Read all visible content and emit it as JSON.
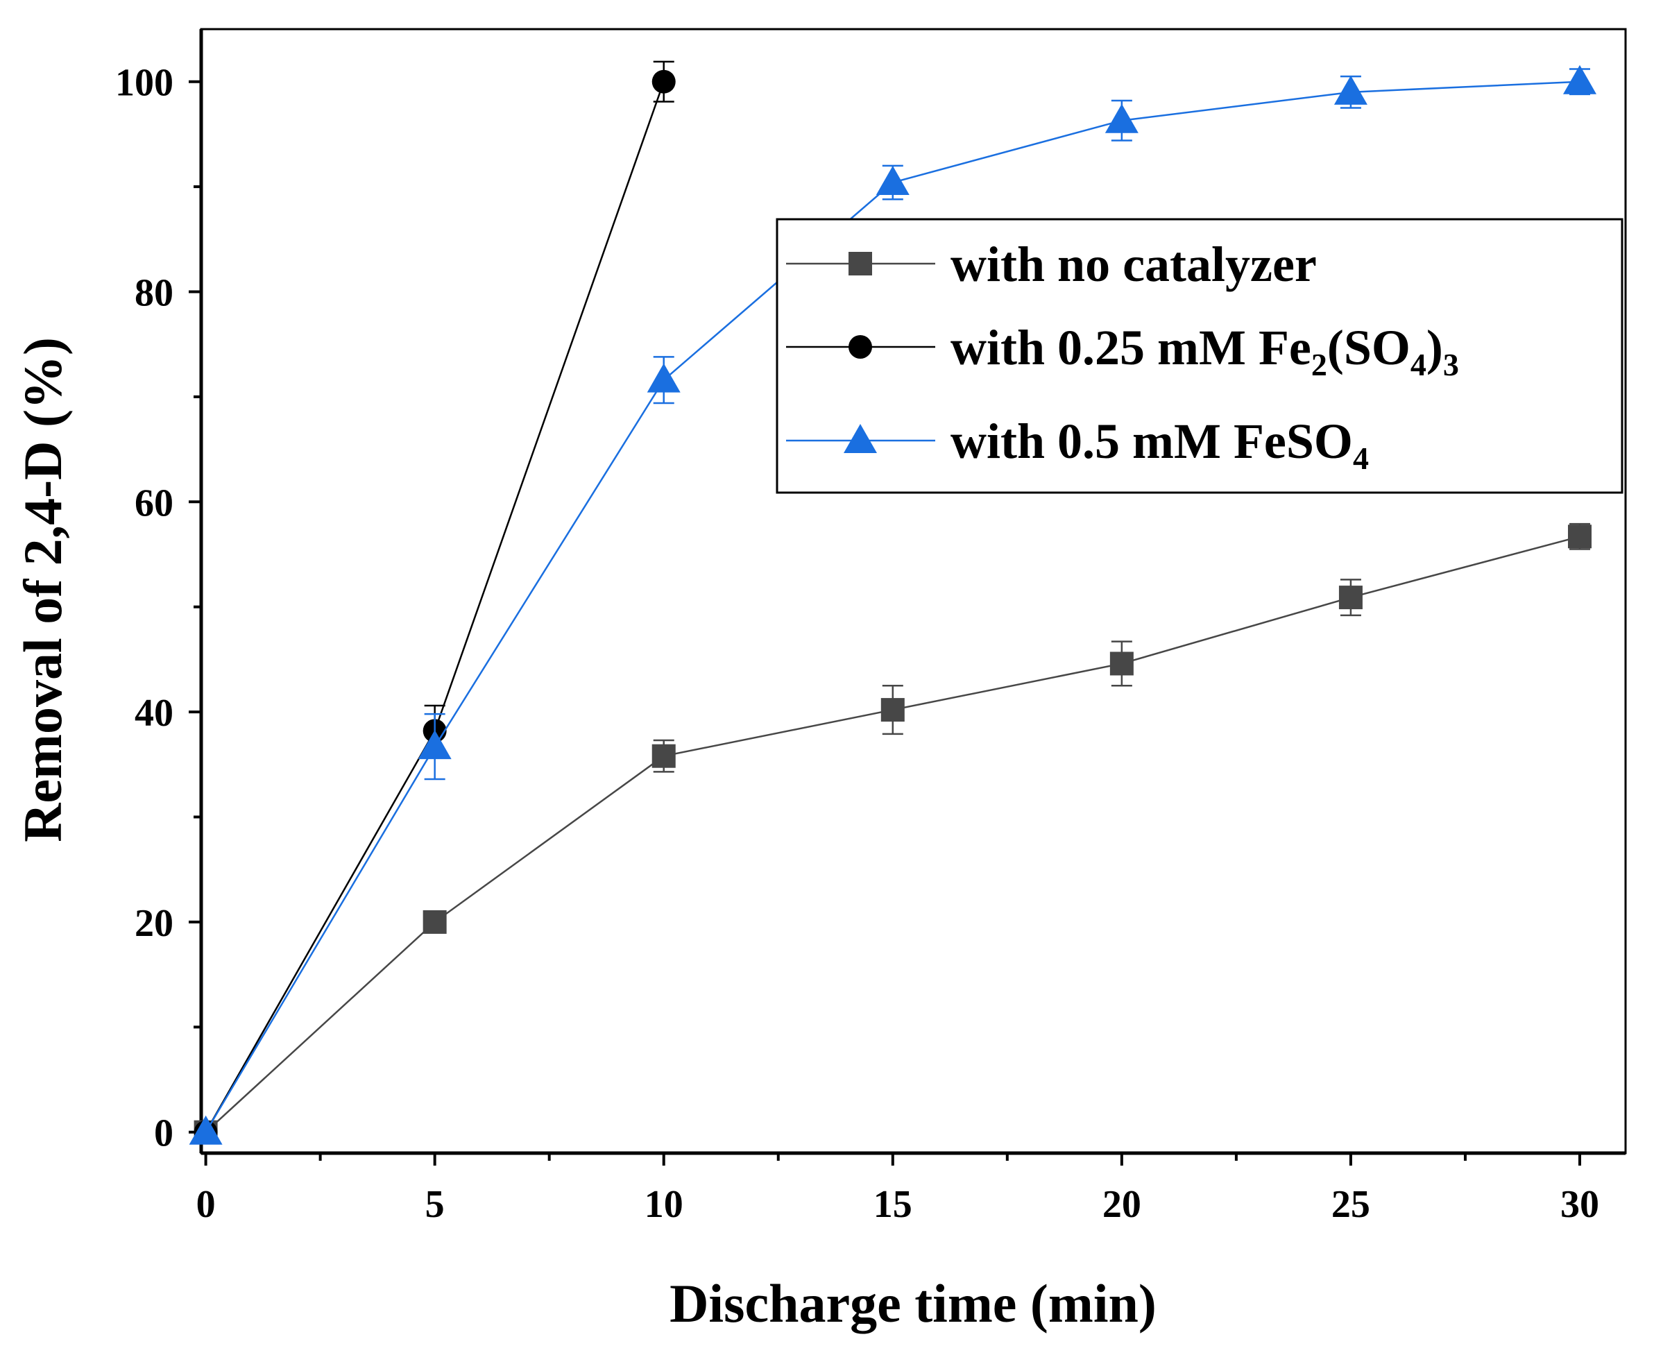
{
  "chart_data": {
    "type": "line",
    "title": "",
    "xlabel": "Discharge time (min)",
    "ylabel": "Removal of 2,4-D (%)",
    "xlim": [
      -0.1,
      31
    ],
    "ylim": [
      -2,
      105
    ],
    "xticks": [
      0,
      5,
      10,
      15,
      20,
      25,
      30
    ],
    "xtick_labels": [
      "0",
      "5",
      "10",
      "15",
      "20",
      "25",
      "30"
    ],
    "yticks": [
      0,
      20,
      40,
      60,
      80,
      100
    ],
    "ytick_labels": [
      "0",
      "20",
      "40",
      "60",
      "80",
      "100"
    ],
    "x_minor_ticks": [
      2.5,
      7.5,
      12.5,
      17.5,
      22.5,
      27.5
    ],
    "y_minor_ticks": [
      10,
      30,
      50,
      70,
      90
    ],
    "legend_position": "top-right",
    "series": [
      {
        "name": "with no catalyzer",
        "legend_parts": [
          {
            "t": "with no catalyzer"
          }
        ],
        "color": "#474747",
        "marker": "square",
        "x": [
          0,
          5,
          10,
          15,
          20,
          25,
          30
        ],
        "values": [
          0,
          20,
          35.8,
          40.2,
          44.6,
          50.9,
          56.7
        ],
        "errors": [
          0,
          0,
          1.5,
          2.3,
          2.1,
          1.7,
          1.2
        ]
      },
      {
        "name": "with 0.25 mM Fe2(SO4)3",
        "legend_parts": [
          {
            "t": "with 0.25 mM Fe"
          },
          {
            "t": "2",
            "sub": true
          },
          {
            "t": "(SO"
          },
          {
            "t": "4",
            "sub": true
          },
          {
            "t": ")"
          },
          {
            "t": "3",
            "sub": true
          }
        ],
        "color": "#000000",
        "marker": "circle",
        "x": [
          0,
          5,
          10
        ],
        "values": [
          0,
          38.2,
          100
        ],
        "errors": [
          0,
          2.4,
          1.9
        ]
      },
      {
        "name": "with 0.5 mM FeSO4",
        "legend_parts": [
          {
            "t": "with 0.5 mM FeSO"
          },
          {
            "t": "4",
            "sub": true
          }
        ],
        "color": "#1a6fe0",
        "marker": "triangle",
        "x": [
          0,
          5,
          10,
          15,
          20,
          25,
          30
        ],
        "values": [
          0,
          36.7,
          71.6,
          90.4,
          96.3,
          99.0,
          100
        ],
        "errors": [
          0,
          3.1,
          2.2,
          1.6,
          1.9,
          1.5,
          1.2
        ]
      }
    ]
  }
}
